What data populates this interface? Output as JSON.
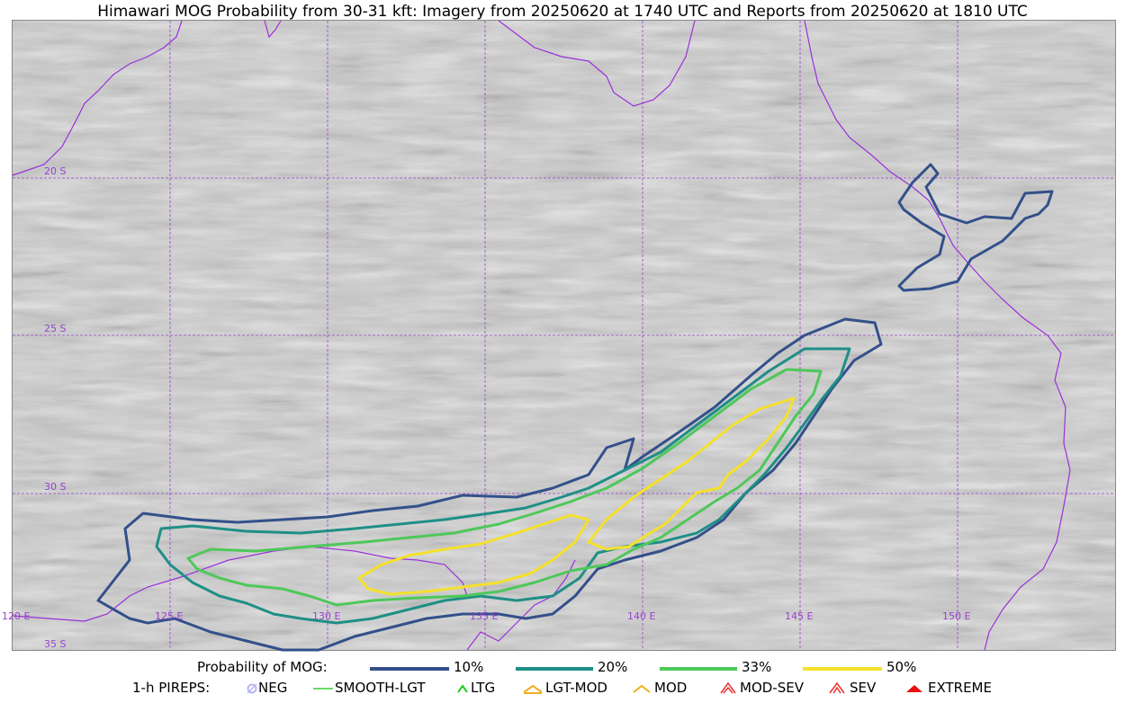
{
  "title": "Himawari MOG Probability from 30-31 kft: Imagery from 20250620 at 1740 UTC and Reports from 20250620 at 1810 UTC",
  "map": {
    "lat_labels": [
      "20 S",
      "25 S",
      "30 S",
      "35 S"
    ],
    "lon_labels": [
      "120 E",
      "125 E",
      "130 E",
      "135 E",
      "140 E",
      "145 E",
      "150 E"
    ],
    "colors": {
      "grid": "#9a3fd0",
      "coast": "#9b30d9",
      "p10": "#33508a",
      "p20": "#1f8f86",
      "p33": "#4ec85a",
      "p50": "#f4e12a"
    }
  },
  "legend": {
    "probability": {
      "label": "Probability of MOG:",
      "items": [
        {
          "label": "10%",
          "color": "#33508a"
        },
        {
          "label": "20%",
          "color": "#1f8f86"
        },
        {
          "label": "33%",
          "color": "#4ec85a"
        },
        {
          "label": "50%",
          "color": "#f4e12a"
        }
      ]
    },
    "pireps": {
      "label": "1-h PIREPS:",
      "items": [
        {
          "label": "NEG",
          "icon": "neg-icon",
          "color": "#b8b8f0"
        },
        {
          "label": "SMOOTH-LGT",
          "icon": "smooth-lgt-icon",
          "color": "#3ccc3c"
        },
        {
          "label": "LTG",
          "icon": "ltg-icon",
          "color": "#22cc22"
        },
        {
          "label": "LGT-MOD",
          "icon": "lgt-mod-icon",
          "color": "#f0b020"
        },
        {
          "label": "MOD",
          "icon": "mod-icon",
          "color": "#f0b020"
        },
        {
          "label": "MOD-SEV",
          "icon": "mod-sev-icon",
          "color": "#e83030"
        },
        {
          "label": "SEV",
          "icon": "sev-icon",
          "color": "#e83030"
        },
        {
          "label": "EXTREME",
          "icon": "extreme-icon",
          "color": "#e81010"
        }
      ]
    }
  }
}
